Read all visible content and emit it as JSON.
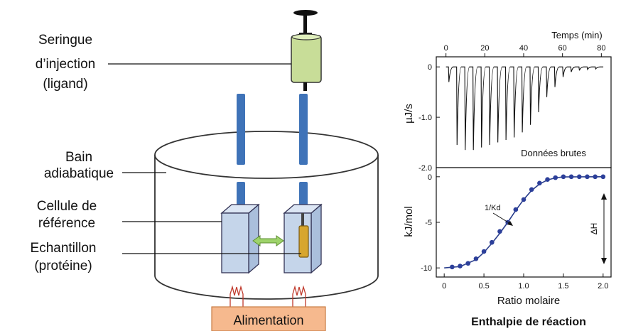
{
  "diagram": {
    "labels": {
      "syringe_line1": "Seringue",
      "syringe_line2": "d’injection",
      "syringe_line3": "(ligand)",
      "bath_line1": "Bain",
      "bath_line2": "adiabatique",
      "reference_line1": "Cellule de",
      "reference_line2": "référence",
      "sample_line1": "Echantillon",
      "sample_line2": "(protéine)",
      "power_supply": "Alimentation"
    },
    "colors": {
      "tube": "#3f73b8",
      "cell": "#c5d5ea",
      "syringe": "#c8dd98",
      "sample": "#d7a62e",
      "arrow": "#9ed36a",
      "power_box": "#f6b98e",
      "heater_wire": "#c0392b"
    }
  },
  "chart_data": [
    {
      "type": "line",
      "panel": "raw-data",
      "xlabel": "Temps (min)",
      "ylabel": "µJ/s",
      "xlim": [
        -5,
        85
      ],
      "ylim": [
        -2.0,
        0.2
      ],
      "x_ticks": [
        0,
        20,
        40,
        60,
        80
      ],
      "x_tick_labels": [
        "0",
        "20",
        "40",
        "60",
        "80"
      ],
      "y_ticks": [
        0,
        -1.0,
        -2.0
      ],
      "y_tick_labels": [
        "0",
        "-1.0",
        "-2.0"
      ],
      "annotation": "Données brutes",
      "baseline": 0,
      "peaks": {
        "x": [
          1.5,
          5.7,
          9.9,
          14.1,
          18.3,
          22.5,
          26.7,
          30.9,
          35.1,
          39.3,
          43.5,
          47.7,
          51.9,
          56.1,
          60.3,
          64.5,
          68.7,
          72.9,
          77.1
        ],
        "y": [
          -0.3,
          -1.55,
          -1.65,
          -1.65,
          -1.6,
          -1.55,
          -1.5,
          -1.45,
          -1.4,
          -1.3,
          -1.15,
          -0.9,
          -0.6,
          -0.4,
          -0.2,
          -0.1,
          -0.07,
          -0.05,
          -0.04
        ]
      }
    },
    {
      "type": "scatter",
      "panel": "integrated",
      "title": "Enthalpie de réaction",
      "xlabel": "Ratio molaire",
      "ylabel": "kJ/mol",
      "xlim": [
        -0.1,
        2.1
      ],
      "ylim": [
        -11,
        1
      ],
      "x_ticks": [
        0,
        0.5,
        1.0,
        1.5,
        2.0
      ],
      "x_tick_labels": [
        "0",
        "0.5",
        "1.0",
        "1.5",
        "2.0"
      ],
      "y_ticks": [
        0,
        -5,
        -10
      ],
      "y_tick_labels": [
        "0",
        "-5",
        "-10"
      ],
      "points": {
        "x": [
          0.1,
          0.2,
          0.3,
          0.4,
          0.5,
          0.6,
          0.7,
          0.8,
          0.9,
          1.0,
          1.1,
          1.2,
          1.3,
          1.4,
          1.5,
          1.6,
          1.7,
          1.8,
          1.9,
          2.0
        ],
        "y": [
          -9.9,
          -9.8,
          -9.5,
          -9.0,
          -8.2,
          -7.2,
          -6.0,
          -5.0,
          -3.6,
          -2.5,
          -1.4,
          -0.7,
          -0.3,
          -0.1,
          0.0,
          0.0,
          0.0,
          0.0,
          0.0,
          0.0
        ]
      },
      "fit": {
        "x": [
          0,
          0.2,
          0.4,
          0.5,
          0.6,
          0.7,
          0.8,
          0.9,
          1.0,
          1.1,
          1.2,
          1.3,
          1.4,
          1.5,
          2.0
        ],
        "y": [
          -10,
          -9.85,
          -9.1,
          -8.3,
          -7.3,
          -6.2,
          -5.0,
          -3.7,
          -2.5,
          -1.5,
          -0.8,
          -0.35,
          -0.12,
          -0.02,
          0.0
        ]
      },
      "annotations": [
        "1/Kd",
        "ΔH"
      ]
    }
  ]
}
